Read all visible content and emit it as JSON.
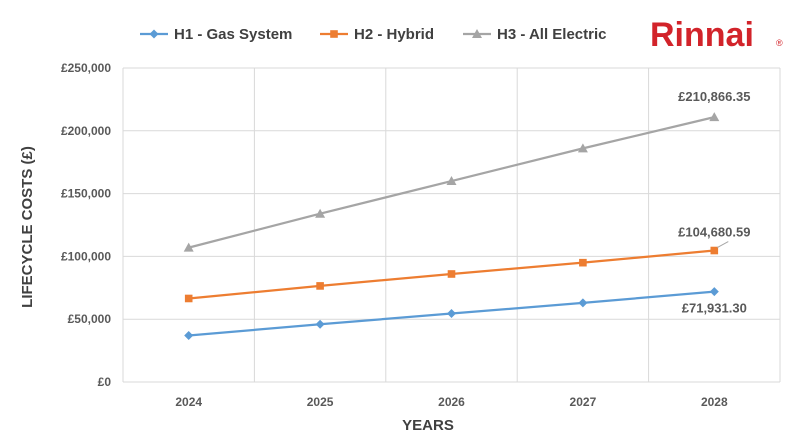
{
  "brand": {
    "logo_text": "Rinnai",
    "registered_mark": "®",
    "color": "#d2232a"
  },
  "chart_data": {
    "type": "line",
    "title": "",
    "xlabel": "YEARS",
    "ylabel": "LIFECYCLE COSTS (£)",
    "categories": [
      "2024",
      "2025",
      "2026",
      "2027",
      "2028"
    ],
    "ylim": [
      0,
      250000
    ],
    "yticks": [
      0,
      50000,
      100000,
      150000,
      200000,
      250000
    ],
    "ytick_labels": [
      "£0",
      "£50,000",
      "£100,000",
      "£150,000",
      "£200,000",
      "£250,000"
    ],
    "grid": true,
    "legend_position": "top",
    "series": [
      {
        "name": "H1 - Gas System",
        "color": "#5b9bd5",
        "marker": "diamond",
        "values": [
          37000,
          46000,
          54500,
          63000,
          71931.3
        ]
      },
      {
        "name": "H2 - Hybrid",
        "color": "#ed7d31",
        "marker": "square",
        "values": [
          66500,
          76500,
          86000,
          95000,
          104680.59
        ]
      },
      {
        "name": "H3 - All Electric",
        "color": "#a5a5a5",
        "marker": "triangle",
        "values": [
          107000,
          134000,
          160000,
          186000,
          210866.35
        ]
      }
    ],
    "annotations": [
      {
        "series": 2,
        "point": 4,
        "text": "£210,866.35"
      },
      {
        "series": 1,
        "point": 4,
        "text": "£104,680.59"
      },
      {
        "series": 0,
        "point": 4,
        "text": "£71,931.30"
      }
    ]
  }
}
